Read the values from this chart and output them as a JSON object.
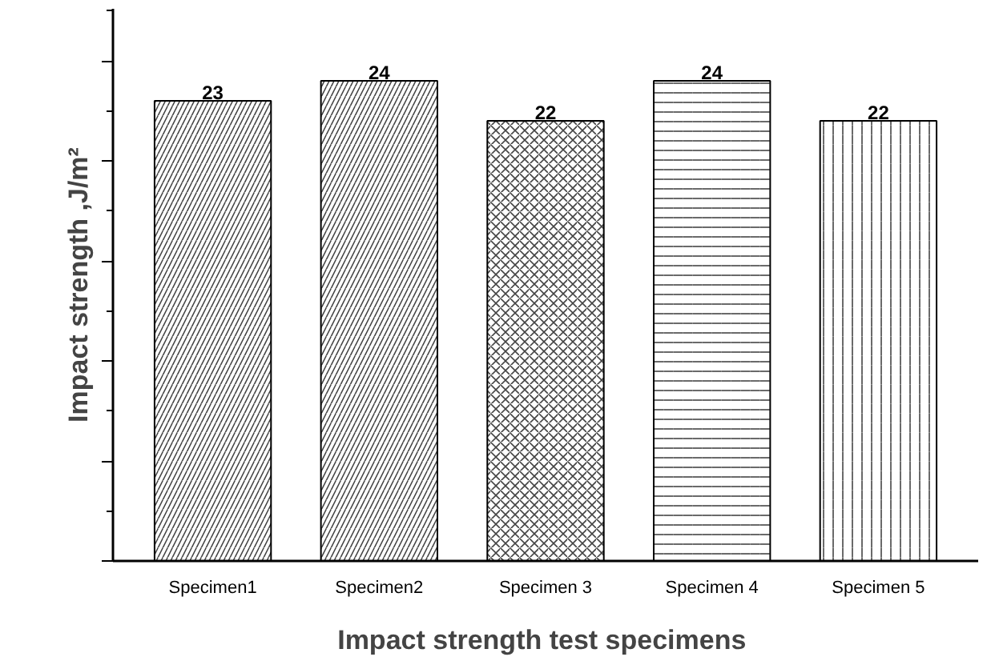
{
  "chart_data": {
    "type": "bar",
    "xlabel": "Impact strength  test specimens",
    "ylabel": "Impact strength ,J/m²",
    "categories": [
      "Specimen1",
      "Specimen2",
      "Specimen 3",
      "Specimen 4",
      "Specimen 5"
    ],
    "values": [
      23,
      24,
      22,
      24,
      22
    ],
    "color": "#ffffff",
    "data_labels": true,
    "ylim": [
      0,
      27.6
    ],
    "yticks": [
      {
        "value": 0,
        "label": null
      },
      {
        "value": 5,
        "label": null
      },
      {
        "value": 10,
        "label": null
      },
      {
        "value": 15,
        "label": null
      },
      {
        "value": 20,
        "label": null
      },
      {
        "value": 25,
        "label": null
      }
    ],
    "tick_labels": "x",
    "grid": false
  }
}
